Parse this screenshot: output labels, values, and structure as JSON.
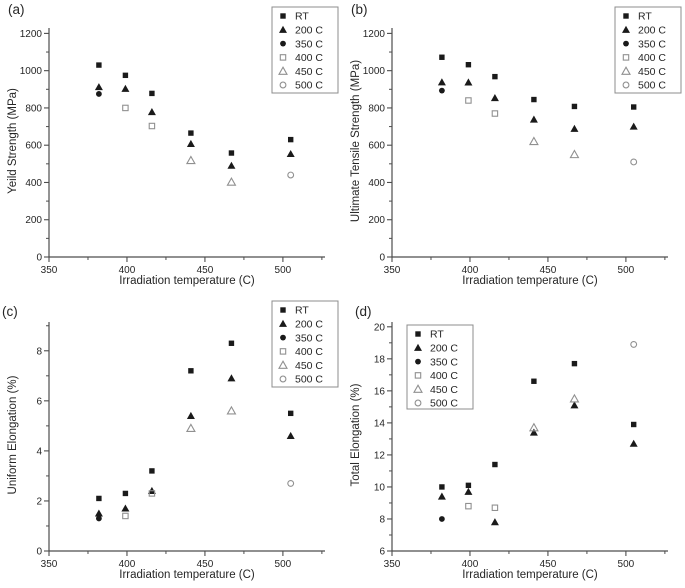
{
  "colors": {
    "background": "#ffffff",
    "filled_marker": "#1a1a1a",
    "open_marker": "#909090",
    "axis": "#4d4d4d",
    "text": "#262626",
    "legend_border": "#8c8c8c"
  },
  "chart_data": [
    {
      "panel_label": "(a)",
      "type": "scatter",
      "xlabel": "Irradiation temperature (C)",
      "ylabel": "Yeild Strength (MPa)",
      "xlim": [
        350,
        527
      ],
      "ylim": [
        0,
        1229
      ],
      "xticks": [
        350,
        400,
        450,
        500
      ],
      "xminorticks": [
        375,
        425,
        475,
        525
      ],
      "yticks": [
        0,
        200,
        400,
        600,
        800,
        1000,
        1200
      ],
      "yminorticks": [
        100,
        300,
        500,
        700,
        900,
        1100
      ],
      "grid": false,
      "legend_position": "top-right",
      "series": [
        {
          "name": "RT",
          "marker": "filled-square",
          "points": [
            [
              382,
              1030
            ],
            [
              399,
              975
            ],
            [
              416,
              878
            ],
            [
              441,
              665
            ],
            [
              467,
              558
            ],
            [
              505,
              630
            ]
          ]
        },
        {
          "name": "200 C",
          "marker": "filled-triangle",
          "points": [
            [
              382,
              912
            ],
            [
              399,
              903
            ],
            [
              416,
              778
            ],
            [
              441,
              607
            ],
            [
              467,
              490
            ],
            [
              505,
              553
            ]
          ]
        },
        {
          "name": "350 C",
          "marker": "filled-circle",
          "points": [
            [
              382,
              875
            ]
          ]
        },
        {
          "name": "400 C",
          "marker": "open-square",
          "points": [
            [
              399,
              800
            ],
            [
              416,
              703
            ]
          ]
        },
        {
          "name": "450 C",
          "marker": "open-triangle",
          "points": [
            [
              441,
              518
            ],
            [
              467,
              402
            ]
          ]
        },
        {
          "name": "500 C",
          "marker": "open-circle",
          "points": [
            [
              505,
              440
            ]
          ]
        }
      ]
    },
    {
      "panel_label": "(b)",
      "type": "scatter",
      "xlabel": "Irradiation temperature (C)",
      "ylabel": "Ultimate Tensile Strength (MPa)",
      "xlim": [
        350,
        527
      ],
      "ylim": [
        0,
        1229
      ],
      "xticks": [
        350,
        400,
        450,
        500
      ],
      "xminorticks": [
        375,
        425,
        475,
        525
      ],
      "yticks": [
        0,
        200,
        400,
        600,
        800,
        1000,
        1200
      ],
      "yminorticks": [
        100,
        300,
        500,
        700,
        900,
        1100
      ],
      "grid": false,
      "legend_position": "top-right",
      "series": [
        {
          "name": "RT",
          "marker": "filled-square",
          "points": [
            [
              382,
              1072
            ],
            [
              399,
              1032
            ],
            [
              416,
              968
            ],
            [
              441,
              845
            ],
            [
              467,
              808
            ],
            [
              505,
              805
            ]
          ]
        },
        {
          "name": "200 C",
          "marker": "filled-triangle",
          "points": [
            [
              382,
              938
            ],
            [
              399,
              937
            ],
            [
              416,
              853
            ],
            [
              441,
              738
            ],
            [
              467,
              688
            ],
            [
              505,
              700
            ]
          ]
        },
        {
          "name": "350 C",
          "marker": "filled-circle",
          "points": [
            [
              382,
              893
            ]
          ]
        },
        {
          "name": "400 C",
          "marker": "open-square",
          "points": [
            [
              399,
              840
            ],
            [
              416,
              770
            ]
          ]
        },
        {
          "name": "450 C",
          "marker": "open-triangle",
          "points": [
            [
              441,
              620
            ],
            [
              467,
              550
            ]
          ]
        },
        {
          "name": "500 C",
          "marker": "open-circle",
          "points": [
            [
              505,
              510
            ]
          ]
        }
      ]
    },
    {
      "panel_label": "(c)",
      "type": "scatter",
      "xlabel": "Irradiation temperature (C)",
      "ylabel": "Uniform Elongation (%)",
      "xlim": [
        350,
        527
      ],
      "ylim": [
        0,
        9.15
      ],
      "xticks": [
        350,
        400,
        450,
        500
      ],
      "xminorticks": [
        375,
        425,
        475,
        525
      ],
      "yticks": [
        0,
        2,
        4,
        6,
        8
      ],
      "yminorticks": [
        1,
        3,
        5,
        7,
        9
      ],
      "grid": false,
      "legend_position": "top-right",
      "series": [
        {
          "name": "RT",
          "marker": "filled-square",
          "points": [
            [
              382,
              2.1
            ],
            [
              399,
              2.3
            ],
            [
              416,
              3.2
            ],
            [
              441,
              7.2
            ],
            [
              467,
              8.3
            ],
            [
              505,
              5.5
            ]
          ]
        },
        {
          "name": "200 C",
          "marker": "filled-triangle",
          "points": [
            [
              382,
              1.5
            ],
            [
              399,
              1.7
            ],
            [
              416,
              2.4
            ],
            [
              441,
              5.4
            ],
            [
              467,
              6.9
            ],
            [
              505,
              4.6
            ]
          ]
        },
        {
          "name": "350 C",
          "marker": "filled-circle",
          "points": [
            [
              382,
              1.3
            ]
          ]
        },
        {
          "name": "400 C",
          "marker": "open-square",
          "points": [
            [
              399,
              1.4
            ],
            [
              416,
              2.3
            ]
          ]
        },
        {
          "name": "450 C",
          "marker": "open-triangle",
          "points": [
            [
              441,
              4.9
            ],
            [
              467,
              5.6
            ]
          ]
        },
        {
          "name": "500 C",
          "marker": "open-circle",
          "points": [
            [
              505,
              2.7
            ]
          ]
        }
      ]
    },
    {
      "panel_label": "(d)",
      "type": "scatter",
      "xlabel": "Irradiation temperature (C)",
      "ylabel": "Total Elongation (%)",
      "xlim": [
        350,
        527
      ],
      "ylim": [
        6,
        20.3
      ],
      "xticks": [
        350,
        400,
        450,
        500
      ],
      "xminorticks": [
        375,
        425,
        475,
        525
      ],
      "yticks": [
        6,
        8,
        10,
        12,
        14,
        16,
        18,
        20
      ],
      "yminorticks": [
        7,
        9,
        11,
        13,
        15,
        17,
        19
      ],
      "grid": false,
      "legend_position": "top-left",
      "series": [
        {
          "name": "RT",
          "marker": "filled-square",
          "points": [
            [
              382,
              10.0
            ],
            [
              399,
              10.1
            ],
            [
              416,
              11.4
            ],
            [
              441,
              16.6
            ],
            [
              467,
              17.7
            ],
            [
              505,
              13.9
            ]
          ]
        },
        {
          "name": "200 C",
          "marker": "filled-triangle",
          "points": [
            [
              382,
              9.4
            ],
            [
              399,
              9.7
            ],
            [
              416,
              7.8
            ],
            [
              441,
              13.4
            ],
            [
              467,
              15.1
            ],
            [
              505,
              12.7
            ]
          ]
        },
        {
          "name": "350 C",
          "marker": "filled-circle",
          "points": [
            [
              382,
              8.0
            ]
          ]
        },
        {
          "name": "400 C",
          "marker": "open-square",
          "points": [
            [
              399,
              8.8
            ],
            [
              416,
              8.7
            ]
          ]
        },
        {
          "name": "450 C",
          "marker": "open-triangle",
          "points": [
            [
              441,
              13.7
            ],
            [
              467,
              15.5
            ]
          ]
        },
        {
          "name": "500 C",
          "marker": "open-circle",
          "points": [
            [
              505,
              18.9
            ]
          ]
        }
      ]
    }
  ]
}
